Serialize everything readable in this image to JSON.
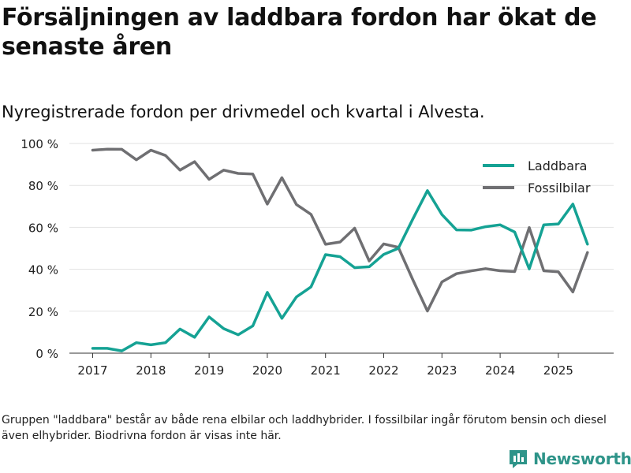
{
  "title": "Försäljningen av laddbara fordon har ökat de senaste åren",
  "subtitle": "Nyregistrerade fordon per drivmedel och kvartal i Alvesta.",
  "footnote": "Gruppen \"laddbara\" består av både rena elbilar och laddhybrider. I fossilbilar ingår förutom bensin och diesel även elhybrider. Biodrivna fordon är visas inte här.",
  "brand": "Newsworthy",
  "chart_data": {
    "type": "line",
    "title": "Nyregistrerade fordon per drivmedel och kvartal i Alvesta.",
    "xlabel": "",
    "ylabel": "",
    "ylim": [
      0,
      100
    ],
    "xlim": [
      2016.6,
      2025.95
    ],
    "ytick_labels": [
      "0 %",
      "20 %",
      "40 %",
      "60 %",
      "80 %",
      "100 %"
    ],
    "ytick_values": [
      0,
      20,
      40,
      60,
      80,
      100
    ],
    "xtick_labels": [
      "2017",
      "2018",
      "2019",
      "2020",
      "2021",
      "2022",
      "2023",
      "2024",
      "2025"
    ],
    "xtick_values": [
      2017,
      2018,
      2019,
      2020,
      2021,
      2022,
      2023,
      2024,
      2025
    ],
    "grid": true,
    "legend_position": "top-right",
    "x": [
      2017.0,
      2017.25,
      2017.5,
      2017.75,
      2018.0,
      2018.25,
      2018.5,
      2018.75,
      2019.0,
      2019.25,
      2019.5,
      2019.75,
      2020.0,
      2020.25,
      2020.5,
      2020.75,
      2021.0,
      2021.25,
      2021.5,
      2021.75,
      2022.0,
      2022.25,
      2022.5,
      2022.75,
      2023.0,
      2023.25,
      2023.5,
      2023.75,
      2024.0,
      2024.25,
      2024.5,
      2024.75,
      2025.0,
      2025.25,
      2025.5
    ],
    "series": [
      {
        "name": "Laddbara",
        "color": "#15a294",
        "values": [
          2.3,
          2.3,
          1.1,
          5.0,
          4.0,
          5.0,
          11.5,
          7.6,
          17.3,
          11.7,
          8.8,
          13.0,
          29.0,
          16.6,
          26.8,
          31.6,
          47.0,
          46.0,
          40.8,
          41.2,
          47.1,
          50.0,
          64.0,
          77.5,
          66.1,
          58.8,
          58.7,
          60.3,
          61.2,
          57.8,
          40.2,
          61.2,
          61.6,
          71.1,
          52.0
        ]
      },
      {
        "name": "Fossilbilar",
        "color": "#6f6f72",
        "values": [
          96.8,
          97.3,
          97.2,
          92.2,
          96.8,
          94.3,
          87.3,
          91.3,
          82.9,
          87.3,
          85.7,
          85.4,
          71.1,
          83.7,
          70.9,
          66.2,
          51.9,
          53.0,
          59.6,
          44.0,
          52.1,
          50.5,
          35.0,
          20.1,
          34.0,
          37.9,
          39.2,
          40.3,
          39.3,
          38.9,
          59.9,
          39.3,
          38.8,
          29.2,
          48.0
        ]
      }
    ]
  }
}
